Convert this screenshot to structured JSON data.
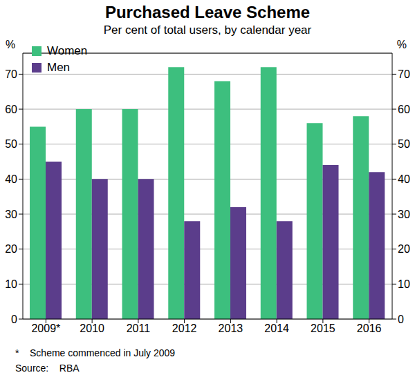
{
  "chart_data": {
    "type": "bar",
    "title": "Purchased Leave Scheme",
    "subtitle": "Per cent of total users, by calendar year",
    "y_label": "%",
    "categories": [
      "2009*",
      "2010",
      "2011",
      "2012",
      "2013",
      "2014",
      "2015",
      "2016"
    ],
    "series": [
      {
        "name": "Women",
        "color": "#3dbf7e",
        "values": [
          55,
          60,
          60,
          72,
          68,
          72,
          56,
          58
        ]
      },
      {
        "name": "Men",
        "color": "#5b3d8b",
        "values": [
          45,
          40,
          40,
          28,
          32,
          28,
          44,
          42
        ]
      }
    ],
    "ylim": [
      0,
      76
    ],
    "yticks": [
      0,
      10,
      20,
      30,
      40,
      50,
      60,
      70
    ],
    "grid": true,
    "legend": "upper left",
    "notes": [
      "*    Scheme commenced in July 2009",
      "Source:    RBA"
    ]
  }
}
